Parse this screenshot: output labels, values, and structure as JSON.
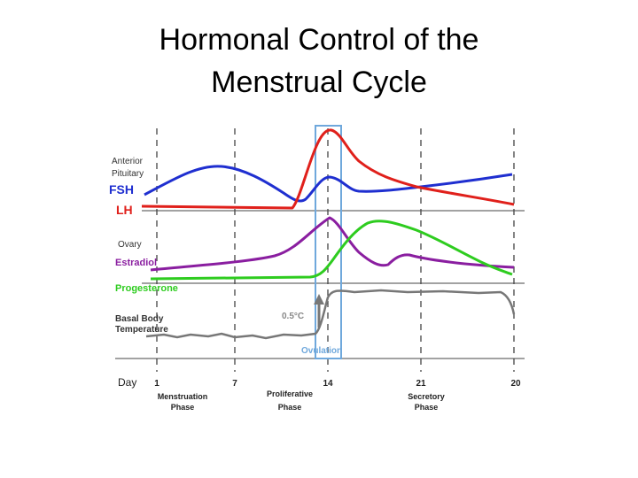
{
  "header": {
    "title_lines": [
      "Hormonal Control of the",
      "Menstrual Cycle"
    ]
  },
  "diagram": {
    "labels": {
      "anterior": "Anterior",
      "pituitary": "Pituitary",
      "fsh": "FSH",
      "lh": "LH",
      "ovary": "Ovary",
      "estradiol": "Estradiol",
      "progesterone": "Progesterone",
      "basal": "Basal Body",
      "temperature": "Temperature",
      "delta": "0.5°C",
      "ovulation": "Ovulation",
      "day": "Day"
    },
    "days": [
      "1",
      "7",
      "14",
      "21",
      "20"
    ],
    "phases": [
      {
        "line1": "Menstruation",
        "line2": "Phase"
      },
      {
        "line1": "Proliferative",
        "line2": "Phase"
      },
      {
        "line1": "Secretory",
        "line2": "Phase"
      }
    ]
  }
}
